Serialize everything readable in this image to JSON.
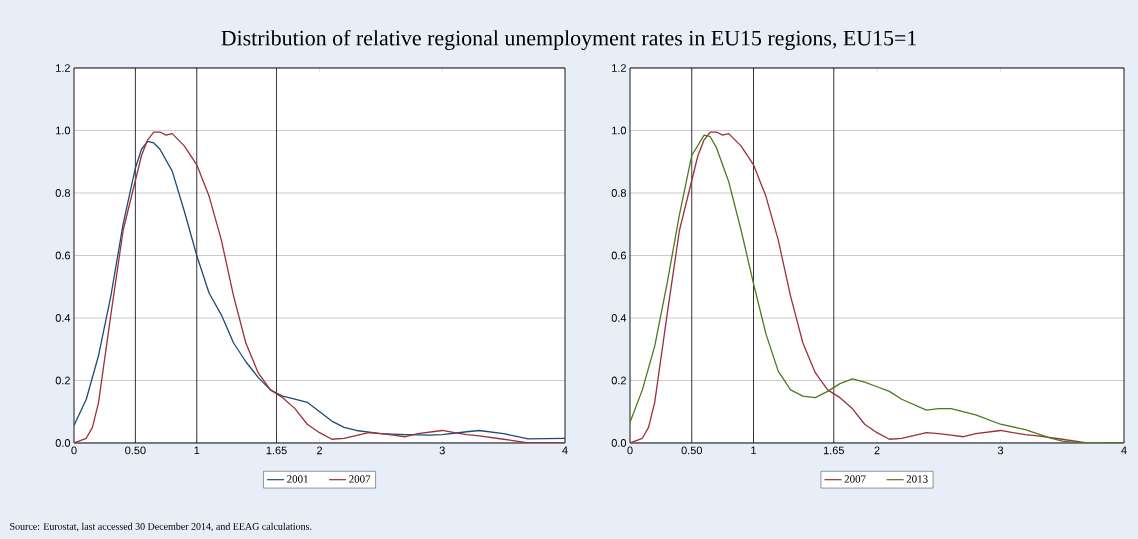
{
  "chart_data": [
    {
      "type": "line",
      "title": "Distribution of relative regional unemployment rates in EU15 regions, EU15=1",
      "annotations": [
        "Source: Eurostat, last accessed 30 December 2014, and EEAG calculations."
      ],
      "xlim": [
        0,
        4
      ],
      "ylim": [
        0,
        1.2
      ],
      "xticks": [
        0,
        {
          "value": 0.5,
          "label": "0.50"
        },
        1,
        1.65,
        2,
        3,
        4
      ],
      "yticks": [
        {
          "value": 0,
          "label": "0.0"
        },
        {
          "value": 0.2,
          "label": "0.2"
        },
        {
          "value": 0.4,
          "label": "0.4"
        },
        {
          "value": 0.6,
          "label": "0.6"
        },
        {
          "value": 0.8,
          "label": "0.8"
        },
        {
          "value": 1.0,
          "label": "1.0"
        },
        {
          "value": 1.2,
          "label": "1.2"
        }
      ],
      "grid": "y",
      "legend": "bottom",
      "ref_lines": [
        {
          "axis": "x",
          "value": 0.5,
          "color": "#000000"
        },
        {
          "axis": "x",
          "value": 1,
          "color": "#000000"
        },
        {
          "axis": "x",
          "value": 1.65,
          "color": "#000000"
        }
      ],
      "series": [
        {
          "name": "2001",
          "color": "#1d4a78",
          "x": [
            0,
            0.1,
            0.2,
            0.3,
            0.4,
            0.5,
            0.55,
            0.6,
            0.65,
            0.7,
            0.8,
            0.9,
            1.0,
            1.1,
            1.2,
            1.3,
            1.4,
            1.5,
            1.6,
            1.65,
            1.7,
            1.8,
            1.9,
            2.0,
            2.1,
            2.2,
            2.3,
            2.5,
            2.7,
            2.9,
            3.0,
            3.2,
            3.3,
            3.5,
            3.7,
            4.0
          ],
          "values": [
            0.056,
            0.14,
            0.28,
            0.47,
            0.7,
            0.88,
            0.94,
            0.965,
            0.96,
            0.94,
            0.87,
            0.74,
            0.6,
            0.48,
            0.41,
            0.32,
            0.26,
            0.21,
            0.17,
            0.16,
            0.15,
            0.14,
            0.13,
            0.1,
            0.07,
            0.05,
            0.04,
            0.03,
            0.027,
            0.025,
            0.027,
            0.036,
            0.04,
            0.03,
            0.013,
            0.015
          ]
        },
        {
          "name": "2007",
          "color": "#9b2f3a",
          "x": [
            0,
            0.1,
            0.15,
            0.2,
            0.3,
            0.4,
            0.5,
            0.55,
            0.6,
            0.65,
            0.7,
            0.75,
            0.8,
            0.9,
            1.0,
            1.1,
            1.2,
            1.3,
            1.4,
            1.5,
            1.6,
            1.7,
            1.8,
            1.9,
            2.0,
            2.1,
            2.2,
            2.4,
            2.5,
            2.6,
            2.7,
            2.8,
            3.0,
            3.1,
            3.2,
            3.3,
            3.5,
            3.7,
            4.0
          ],
          "values": [
            0,
            0.015,
            0.05,
            0.13,
            0.41,
            0.68,
            0.84,
            0.92,
            0.97,
            0.995,
            0.995,
            0.985,
            0.99,
            0.95,
            0.89,
            0.79,
            0.65,
            0.47,
            0.32,
            0.225,
            0.17,
            0.145,
            0.11,
            0.06,
            0.033,
            0.012,
            0.015,
            0.033,
            0.03,
            0.025,
            0.02,
            0.03,
            0.04,
            0.033,
            0.027,
            0.023,
            0.012,
            0,
            0
          ]
        }
      ]
    },
    {
      "type": "line",
      "xlim": [
        0,
        4
      ],
      "ylim": [
        0,
        1.2
      ],
      "xticks": [
        0,
        {
          "value": 0.5,
          "label": "0.50"
        },
        1,
        1.65,
        2,
        3,
        4
      ],
      "yticks": [
        {
          "value": 0,
          "label": "0.0"
        },
        {
          "value": 0.2,
          "label": "0.2"
        },
        {
          "value": 0.4,
          "label": "0.4"
        },
        {
          "value": 0.6,
          "label": "0.6"
        },
        {
          "value": 0.8,
          "label": "0.8"
        },
        {
          "value": 1.0,
          "label": "1.0"
        },
        {
          "value": 1.2,
          "label": "1.2"
        }
      ],
      "grid": "y",
      "legend": "bottom",
      "ref_lines": [
        {
          "axis": "x",
          "value": 0.5,
          "color": "#000000"
        },
        {
          "axis": "x",
          "value": 1,
          "color": "#000000"
        },
        {
          "axis": "x",
          "value": 1.65,
          "color": "#000000"
        }
      ],
      "series": [
        {
          "name": "2007",
          "color": "#9b2f3a",
          "x": [
            0,
            0.1,
            0.15,
            0.2,
            0.3,
            0.4,
            0.5,
            0.55,
            0.6,
            0.65,
            0.7,
            0.75,
            0.8,
            0.9,
            1.0,
            1.1,
            1.2,
            1.3,
            1.4,
            1.5,
            1.6,
            1.7,
            1.8,
            1.9,
            2.0,
            2.1,
            2.2,
            2.4,
            2.5,
            2.6,
            2.7,
            2.8,
            3.0,
            3.1,
            3.2,
            3.3,
            3.5,
            3.7,
            4.0
          ],
          "values": [
            0,
            0.015,
            0.05,
            0.13,
            0.41,
            0.68,
            0.84,
            0.92,
            0.97,
            0.995,
            0.995,
            0.985,
            0.99,
            0.95,
            0.89,
            0.79,
            0.65,
            0.47,
            0.32,
            0.225,
            0.17,
            0.145,
            0.11,
            0.06,
            0.033,
            0.012,
            0.015,
            0.033,
            0.03,
            0.025,
            0.02,
            0.03,
            0.04,
            0.033,
            0.027,
            0.023,
            0.012,
            0,
            0
          ]
        },
        {
          "name": "2013",
          "color": "#4b7a1f",
          "x": [
            0,
            0.1,
            0.2,
            0.3,
            0.4,
            0.5,
            0.6,
            0.65,
            0.7,
            0.8,
            0.9,
            1.0,
            1.1,
            1.2,
            1.3,
            1.4,
            1.5,
            1.6,
            1.7,
            1.8,
            1.9,
            2.0,
            2.1,
            2.2,
            2.4,
            2.5,
            2.6,
            2.8,
            3.0,
            3.2,
            3.4,
            3.5,
            3.6,
            4.0
          ],
          "values": [
            0.066,
            0.17,
            0.31,
            0.51,
            0.73,
            0.92,
            0.985,
            0.98,
            0.945,
            0.835,
            0.68,
            0.51,
            0.35,
            0.23,
            0.17,
            0.15,
            0.145,
            0.165,
            0.19,
            0.205,
            0.195,
            0.18,
            0.165,
            0.14,
            0.105,
            0.11,
            0.11,
            0.09,
            0.06,
            0.043,
            0.016,
            0.006,
            0.002,
            0
          ]
        }
      ]
    }
  ]
}
